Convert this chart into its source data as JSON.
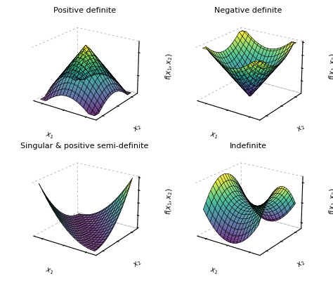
{
  "titles": [
    "Positive definite",
    "Negative definite",
    "Singular & positive semi-definite",
    "Indefinite"
  ],
  "colormap": "viridis",
  "grid_range": [
    -2.5,
    2.5
  ],
  "grid_points": 50,
  "figsize": [
    4.74,
    4.14
  ],
  "dpi": 100,
  "background_color": "#ffffff",
  "elev": 22,
  "azim": -55,
  "title_fontsize": 8,
  "label_fontsize": 7
}
